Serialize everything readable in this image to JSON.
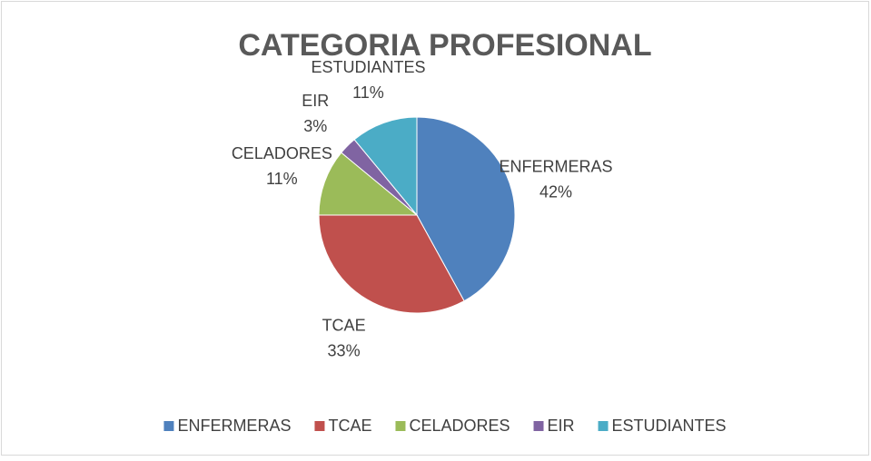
{
  "chart_data": {
    "type": "pie",
    "title": "CATEGORIA PROFESIONAL",
    "categories": [
      "ENFERMERAS",
      "TCAE",
      "CELADORES",
      "EIR",
      "ESTUDIANTES"
    ],
    "values": [
      42,
      33,
      11,
      3,
      11
    ],
    "value_labels": [
      "42%",
      "33%",
      "11%",
      "3%",
      "11%"
    ],
    "colors": [
      "#4f81bd",
      "#c0504d",
      "#9bbb59",
      "#8064a2",
      "#4bacc6"
    ],
    "legend": "bottom"
  }
}
